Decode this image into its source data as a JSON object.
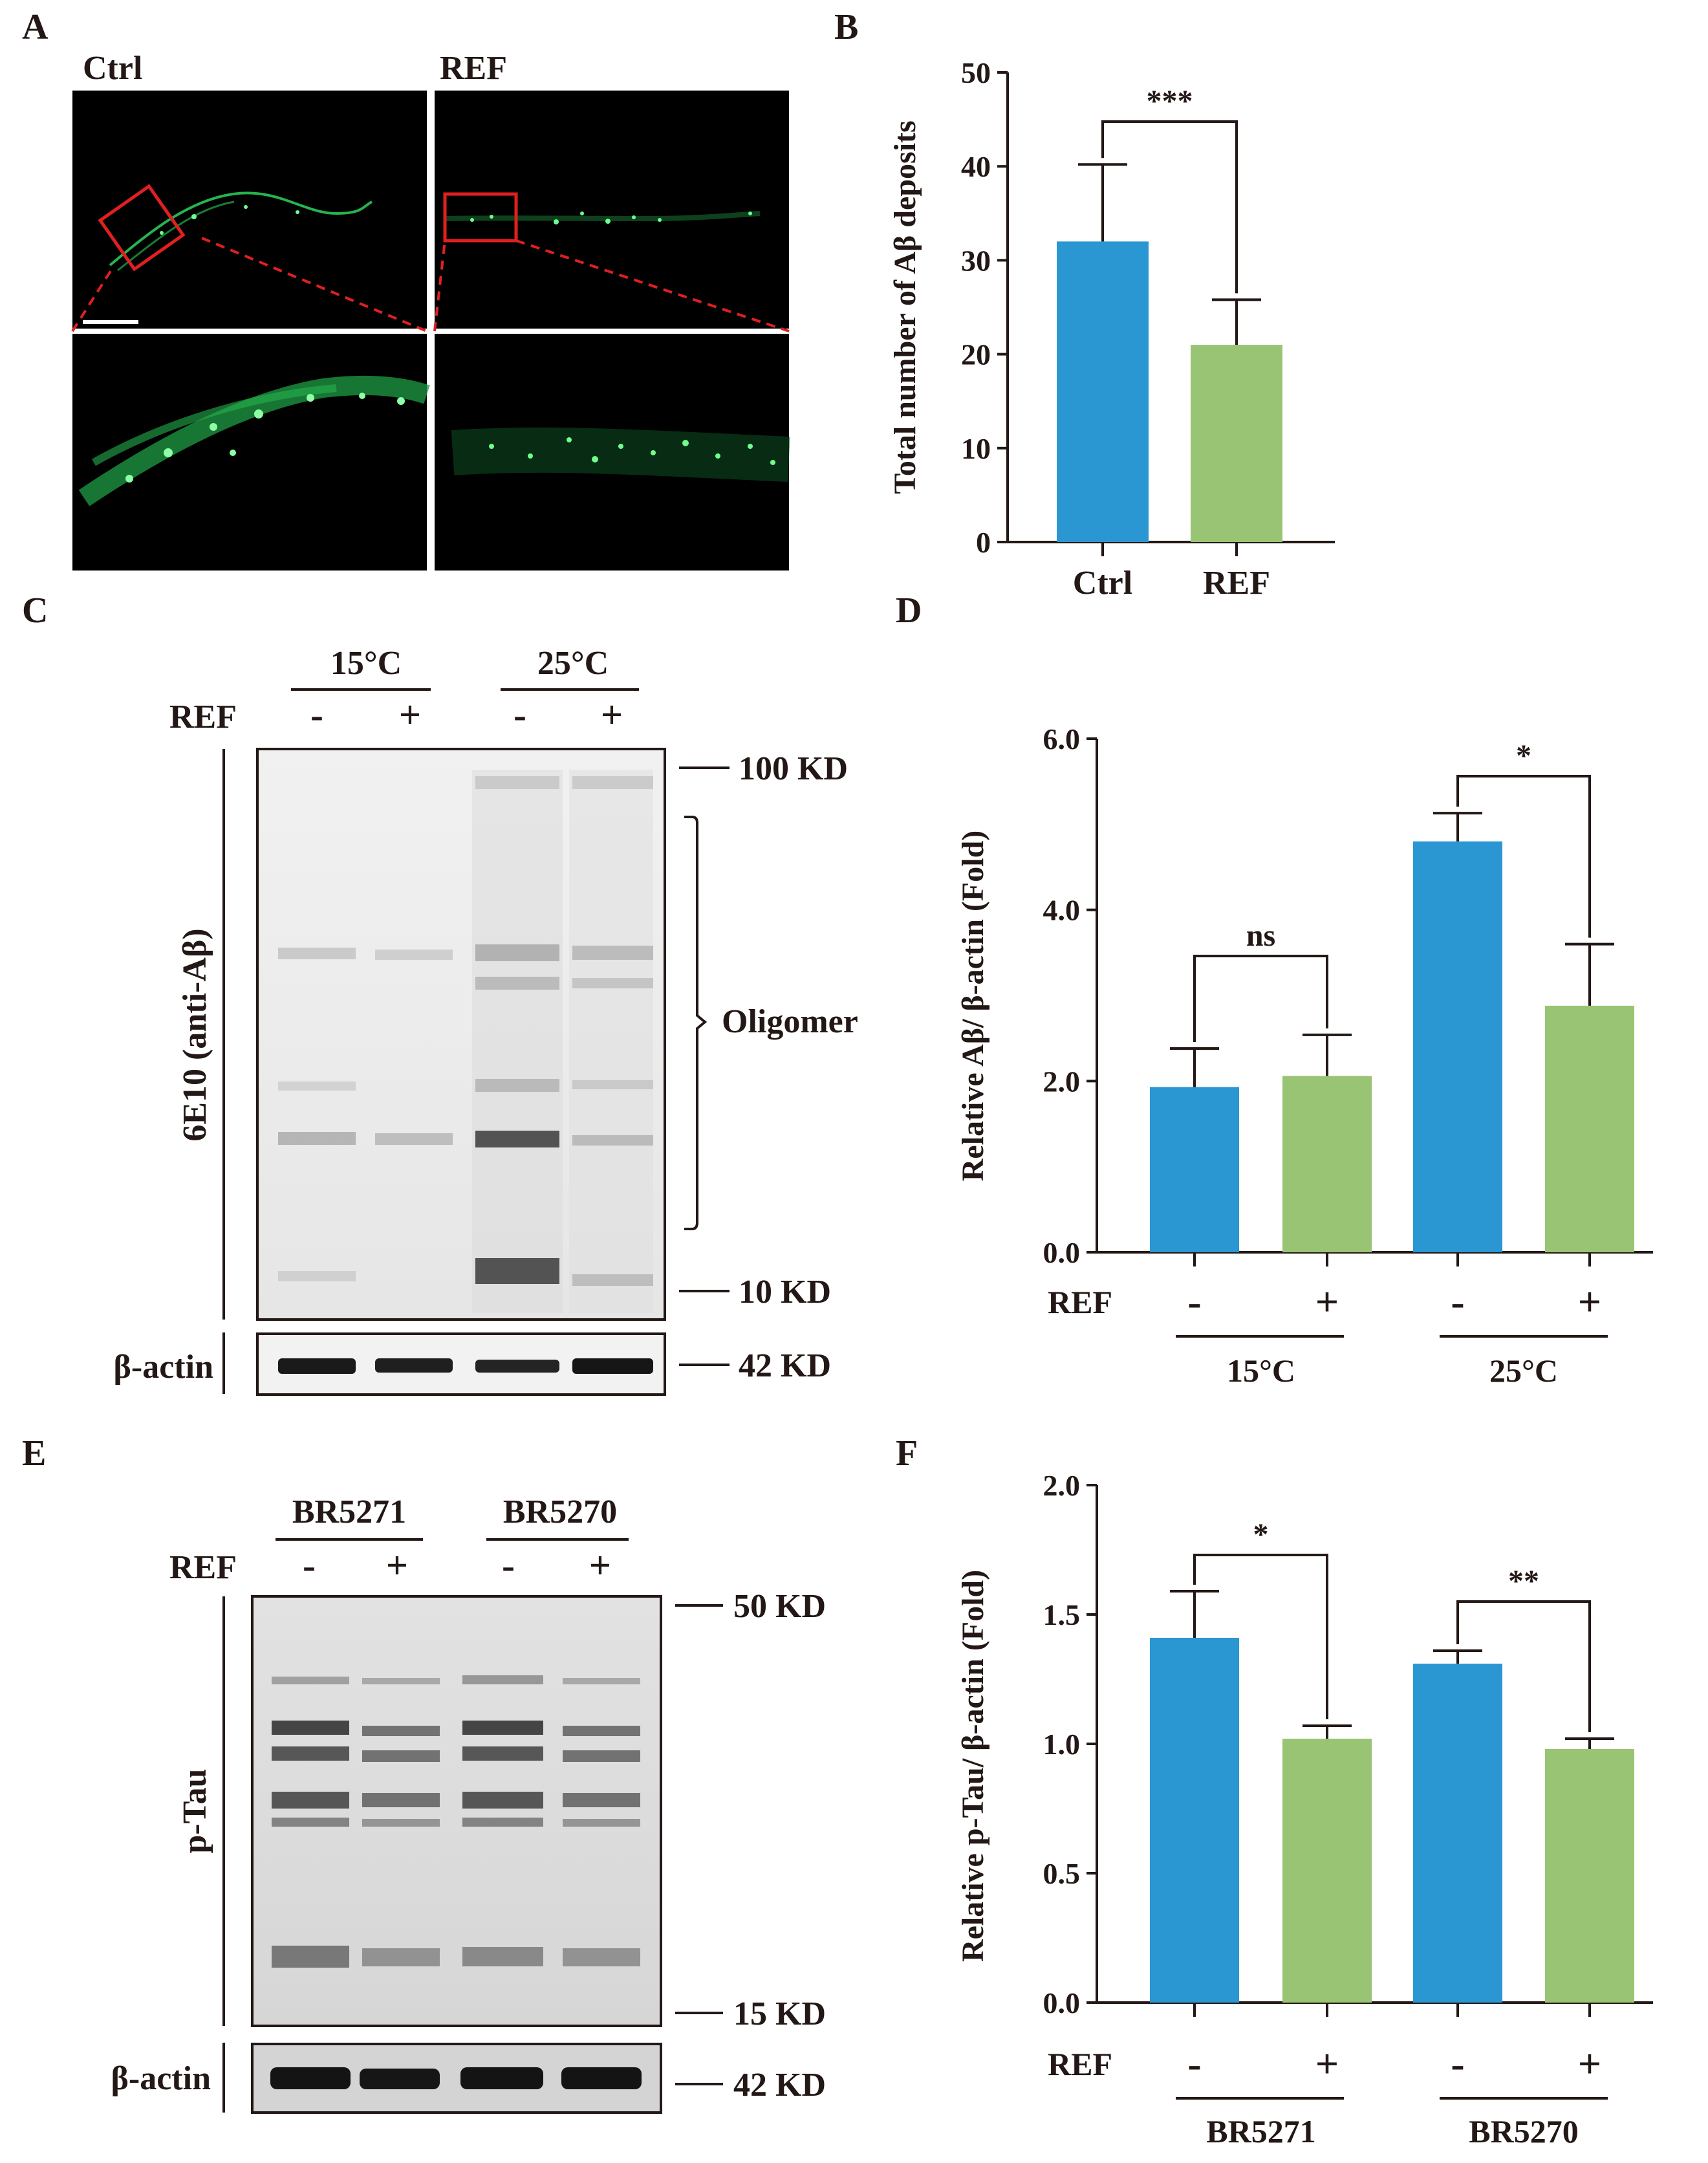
{
  "panels": {
    "A": {
      "label": "A",
      "ctrl_label": "Ctrl",
      "ref_label": "REF"
    },
    "B": {
      "label": "B",
      "significance": "***"
    },
    "C": {
      "label": "C",
      "groups": [
        "15°C",
        "25°C"
      ],
      "treatment_label": "REF",
      "lane_signs": [
        "-",
        "+",
        "-",
        "+"
      ],
      "antibody_label": "6E10 (anti-Aβ)",
      "loading_label": "β-actin",
      "markers": [
        "100 KD",
        "10 KD",
        "42 KD"
      ],
      "bracket_label": "Oligomer"
    },
    "D": {
      "label": "D",
      "treatment_label": "REF",
      "signs": [
        "-",
        "+",
        "-",
        "+"
      ],
      "groups": [
        "15°C",
        "25°C"
      ],
      "significance": [
        "ns",
        "*"
      ]
    },
    "E": {
      "label": "E",
      "groups": [
        "BR5271",
        "BR5270"
      ],
      "treatment_label": "REF",
      "lane_signs": [
        "-",
        "+",
        "-",
        "+"
      ],
      "antibody_label": "p-Tau",
      "loading_label": "β-actin",
      "markers": [
        "50 KD",
        "15 KD",
        "42 KD"
      ]
    },
    "F": {
      "label": "F",
      "treatment_label": "REF",
      "signs": [
        "-",
        "+",
        "-",
        "+"
      ],
      "groups": [
        "BR5271",
        "BR5270"
      ],
      "significance": [
        "*",
        "**"
      ]
    }
  },
  "colors": {
    "blue": "#2a96d2",
    "green": "#99c474",
    "text": "#231815",
    "red_box": "#e02020"
  },
  "chart_data": [
    {
      "panel": "B",
      "type": "bar",
      "categories": [
        "Ctrl",
        "REF"
      ],
      "values": [
        32,
        21
      ],
      "errors": [
        8.2,
        4.8
      ],
      "ylabel": "Total number of Aβ deposits",
      "ylim": [
        0,
        50
      ],
      "yticks": [
        "0",
        "10",
        "20",
        "30",
        "40",
        "50"
      ]
    },
    {
      "panel": "D",
      "type": "bar",
      "categories": [
        "-",
        "+",
        "-",
        "+"
      ],
      "values": [
        1.93,
        2.06,
        4.8,
        2.88
      ],
      "errors": [
        0.45,
        0.48,
        0.33,
        0.72
      ],
      "ylabel": "Relative Aβ/ β-actin (Fold)",
      "ylim": [
        0,
        6
      ],
      "yticks": [
        "0.0",
        "2.0",
        "4.0",
        "6.0"
      ]
    },
    {
      "panel": "F",
      "type": "bar",
      "categories": [
        "-",
        "+",
        "-",
        "+"
      ],
      "values": [
        1.41,
        1.02,
        1.31,
        0.98
      ],
      "errors": [
        0.18,
        0.05,
        0.05,
        0.04
      ],
      "ylabel": "Relative p-Tau/ β-actin (Fold)",
      "ylim": [
        0,
        2
      ],
      "yticks": [
        "0.0",
        "0.5",
        "1.0",
        "1.5",
        "2.0"
      ]
    }
  ]
}
